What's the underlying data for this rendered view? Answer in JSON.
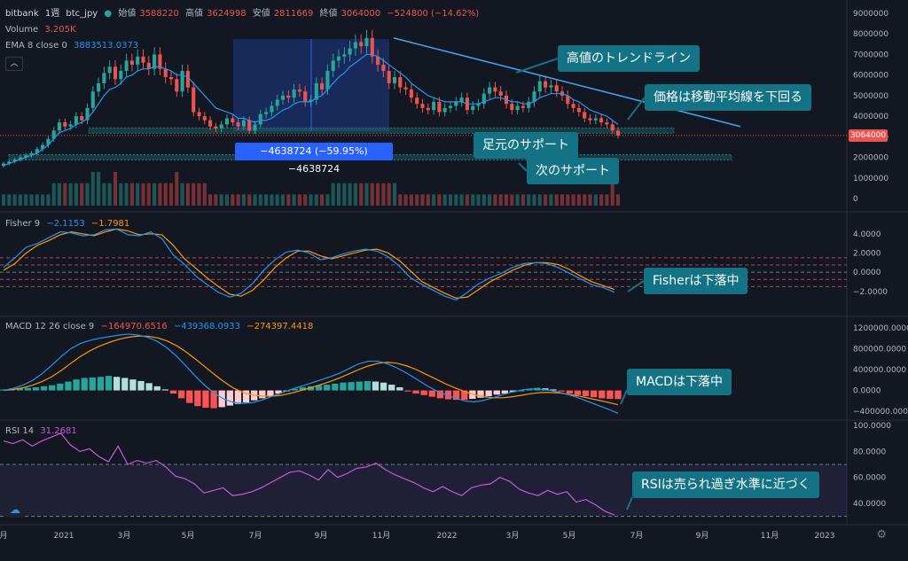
{
  "header": {
    "exchange": "bitbank",
    "interval": "1週",
    "symbol": "btc_jpy",
    "open_label": "始値",
    "open_value": "3588220",
    "high_label": "高値",
    "high_value": "3624998",
    "low_label": "安値",
    "low_value": "2811669",
    "close_label": "終値",
    "close_value": "3064000",
    "change": "−524800 (−14.62%)",
    "volume_label": "Volume",
    "volume_value": "3.205K",
    "ema_label": "EMA 8 close 0",
    "ema_value": "3883513.0373",
    "collapse_icon": "chevron-up-icon"
  },
  "fisher_header": {
    "label": "Fisher 9",
    "v1": "−2.1153",
    "v2": "−1.7981"
  },
  "macd_header": {
    "label": "MACD 12 26 close 9",
    "v1": "−164970.6516",
    "v2": "−439368.0933",
    "v3": "−274397.4418"
  },
  "rsi_header": {
    "label": "RSI 14",
    "v1": "31.2681"
  },
  "price_badge": "3064000",
  "measure_label": "−4638724 (−59.95%) −4638724",
  "callouts": {
    "high_trendline": "高値のトレンドライン",
    "below_ma": "価格は移動平均線を下回る",
    "current_support": "足元のサポート",
    "next_support": "次のサポート",
    "fisher_down": "Fisherは下落中",
    "macd_down": "MACDは下落中",
    "rsi_near": "RSIは売られ過ぎ水準に近づく"
  },
  "colors": {
    "up": "#26a69a",
    "down": "#ef5350",
    "ema": "#2196f3",
    "signal": "#ff9800",
    "rsi": "#c05cd6",
    "callout": "#137385",
    "background": "#131722"
  },
  "chart_data": [
    {
      "type": "candlestick",
      "title": "bitbank 1週 btc_jpy",
      "yticks": [
        "9000000",
        "8000000",
        "7000000",
        "6000000",
        "5000000",
        "4000000",
        "3000000",
        "2000000",
        "1000000",
        "0"
      ],
      "ylim": [
        0,
        9000000
      ],
      "xticks": [
        "月",
        "2021",
        "3月",
        "5月",
        "7月",
        "9月",
        "11月",
        "2022",
        "3月",
        "5月",
        "7月",
        "9月",
        "11月",
        "2023"
      ],
      "close": [
        1700000,
        1800000,
        1900000,
        2000000,
        2100000,
        2200000,
        2400000,
        2600000,
        2900000,
        3300000,
        3700000,
        3500000,
        3600000,
        4000000,
        3800000,
        4400000,
        5200000,
        5600000,
        6100000,
        6400000,
        5800000,
        6200000,
        6700000,
        6500000,
        6900000,
        6600000,
        6300000,
        7000000,
        6300000,
        5900000,
        5800000,
        5200000,
        6200000,
        5400000,
        4200000,
        4000000,
        3800000,
        3500000,
        3400000,
        3600000,
        3900000,
        3700000,
        3500000,
        3800000,
        3300000,
        3600000,
        4100000,
        4200000,
        4500000,
        4800000,
        5000000,
        4900000,
        5300000,
        5200000,
        4700000,
        4800000,
        5600000,
        5300000,
        6200000,
        6700000,
        6900000,
        7000000,
        7300000,
        7600000,
        7400000,
        7800000,
        6900000,
        6500000,
        6200000,
        5600000,
        5900000,
        5400000,
        5300000,
        4900000,
        4600000,
        4400000,
        4300000,
        4700000,
        4200000,
        4400000,
        4500000,
        4700000,
        4900000,
        4300000,
        4500000,
        4600000,
        5100000,
        5400000,
        5200000,
        5000000,
        4600000,
        4300000,
        4500000,
        4400000,
        4700000,
        5200000,
        5700000,
        5400000,
        5500000,
        5200000,
        5000000,
        4600000,
        4400000,
        4200000,
        3900000,
        3800000,
        3900000,
        3700000,
        3600000,
        3300000,
        3064000
      ],
      "ema": [
        1600000,
        1700000,
        1800000,
        1900000,
        2000000,
        2100000,
        2200000,
        2400000,
        2600000,
        2900000,
        3200000,
        3300000,
        3400000,
        3600000,
        3700000,
        3900000,
        4200000,
        4600000,
        5000000,
        5300000,
        5400000,
        5600000,
        5900000,
        6000000,
        6200000,
        6300000,
        6300000,
        6400000,
        6400000,
        6300000,
        6200000,
        6000000,
        6000000,
        5900000,
        5600000,
        5300000,
        5000000,
        4700000,
        4400000,
        4300000,
        4200000,
        4100000,
        3900000,
        3900000,
        3800000,
        3700000,
        3800000,
        3800000,
        3900000,
        4100000,
        4300000,
        4400000,
        4600000,
        4700000,
        4700000,
        4700000,
        4900000,
        5000000,
        5300000,
        5600000,
        5900000,
        6100000,
        6400000,
        6600000,
        6800000,
        7000000,
        7000000,
        6900000,
        6700000,
        6500000,
        6300000,
        6100000,
        5900000,
        5600000,
        5400000,
        5200000,
        5000000,
        4900000,
        4800000,
        4700000,
        4700000,
        4700000,
        4700000,
        4600000,
        4600000,
        4600000,
        4700000,
        4800000,
        4900000,
        4900000,
        4800000,
        4700000,
        4700000,
        4600000,
        4600000,
        4700000,
        4900000,
        5000000,
        5100000,
        5100000,
        5100000,
        5000000,
        4800000,
        4700000,
        4500000,
        4300000,
        4200000,
        4100000,
        4000000,
        3800000,
        3600000
      ],
      "volume": [
        1,
        1,
        1,
        1,
        1,
        1,
        1,
        1,
        1,
        2,
        2,
        2,
        2,
        2,
        2,
        2,
        3,
        3,
        2,
        2,
        3,
        2,
        2,
        2,
        2,
        2,
        2,
        2,
        2,
        2,
        2,
        3,
        2,
        2,
        2,
        2,
        2,
        1,
        1,
        1,
        1,
        1,
        1,
        1,
        1,
        1,
        1,
        1,
        1,
        1,
        1,
        1,
        1,
        1,
        1,
        1,
        1,
        1,
        1,
        2,
        2,
        2,
        2,
        2,
        2,
        2,
        2,
        2,
        2,
        2,
        2,
        1,
        1,
        1,
        1,
        1,
        1,
        1,
        1,
        1,
        1,
        1,
        1,
        1,
        1,
        1,
        1,
        1,
        1,
        1,
        1,
        1,
        1,
        1,
        1,
        1,
        1,
        1,
        1,
        1,
        1,
        1,
        1,
        1,
        1,
        1,
        1,
        1,
        1,
        2,
        1
      ],
      "hlines": {
        "current_support": 3300000,
        "next_support": 2000000
      },
      "trendline": {
        "from": 7800000,
        "to": 3500000
      }
    },
    {
      "type": "line",
      "title": "Fisher 9",
      "yticks": [
        "4.0000",
        "2.0000",
        "0.0000",
        "−2.0000"
      ],
      "ylim": [
        -3.5,
        5
      ],
      "levels": [
        1.5,
        0.75,
        0,
        -0.75,
        -1.5
      ],
      "series": [
        {
          "name": "Fisher",
          "values": [
            0.5,
            1.5,
            2.6,
            3.0,
            3.6,
            4.2,
            4.1,
            3.8,
            3.9,
            4.4,
            4.5,
            3.9,
            3.8,
            4.2,
            3.5,
            1.8,
            0.8,
            -0.4,
            -1.3,
            -2.1,
            -2.6,
            -2.2,
            -1.2,
            0.2,
            1.3,
            2.1,
            2.3,
            2.0,
            1.3,
            1.5,
            1.9,
            2.2,
            2.4,
            2.2,
            1.6,
            0.6,
            -0.6,
            -1.3,
            -1.9,
            -2.5,
            -2.9,
            -2.1,
            -1.2,
            -0.6,
            -0.1,
            0.5,
            0.9,
            1.0,
            0.9,
            0.5,
            -0.1,
            -0.7,
            -1.3,
            -1.6,
            -2.1
          ]
        },
        {
          "name": "Signal",
          "values": [
            0.2,
            0.9,
            2.0,
            2.8,
            3.3,
            3.9,
            4.2,
            4.0,
            3.8,
            4.2,
            4.5,
            4.3,
            3.9,
            4.0,
            3.9,
            2.8,
            1.4,
            0.4,
            -0.6,
            -1.5,
            -2.3,
            -2.5,
            -1.9,
            -0.8,
            0.5,
            1.5,
            2.2,
            2.2,
            1.7,
            1.4,
            1.7,
            2.0,
            2.3,
            2.4,
            2.0,
            1.2,
            0.1,
            -1.0,
            -1.6,
            -2.2,
            -2.7,
            -2.6,
            -1.8,
            -1.0,
            -0.4,
            0.2,
            0.7,
            1.0,
            1.0,
            0.8,
            0.3,
            -0.4,
            -1.0,
            -1.4,
            -1.8
          ]
        }
      ]
    },
    {
      "type": "bar",
      "title": "MACD 12 26 close 9",
      "yticks": [
        "1200000.0000",
        "800000.0000",
        "400000.0000",
        "0.0000",
        "−400000.0000"
      ],
      "ylim": [
        -500000,
        1300000
      ],
      "histogram": [
        20000,
        30000,
        40000,
        50000,
        60000,
        80000,
        100000,
        130000,
        170000,
        210000,
        240000,
        250000,
        260000,
        280000,
        260000,
        240000,
        210000,
        180000,
        140000,
        80000,
        20000,
        -60000,
        -150000,
        -240000,
        -300000,
        -330000,
        -340000,
        -320000,
        -290000,
        -260000,
        -230000,
        -190000,
        -150000,
        -110000,
        -60000,
        -10000,
        30000,
        60000,
        80000,
        100000,
        110000,
        130000,
        150000,
        160000,
        170000,
        180000,
        170000,
        150000,
        110000,
        60000,
        -20000,
        -60000,
        -90000,
        -120000,
        -150000,
        -170000,
        -180000,
        -180000,
        -160000,
        -140000,
        -110000,
        -80000,
        -60000,
        -30000,
        0,
        30000,
        50000,
        40000,
        20000,
        -20000,
        -60000,
        -90000,
        -110000,
        -130000,
        -150000,
        -160000,
        -165000
      ],
      "series": [
        {
          "name": "MACD",
          "values": [
            0,
            40000,
            100000,
            190000,
            320000,
            480000,
            650000,
            800000,
            900000,
            960000,
            1000000,
            1030000,
            1060000,
            1080000,
            1060000,
            1020000,
            940000,
            820000,
            660000,
            470000,
            270000,
            90000,
            -60000,
            -170000,
            -230000,
            -250000,
            -230000,
            -180000,
            -110000,
            -40000,
            20000,
            80000,
            140000,
            200000,
            260000,
            330000,
            420000,
            510000,
            560000,
            560000,
            510000,
            430000,
            330000,
            220000,
            100000,
            0,
            -80000,
            -140000,
            -200000,
            -220000,
            -190000,
            -140000,
            -80000,
            -30000,
            10000,
            30000,
            20000,
            0,
            -40000,
            -90000,
            -150000,
            -220000,
            -290000,
            -360000,
            -439368
          ]
        },
        {
          "name": "Signal",
          "values": [
            0,
            20000,
            50000,
            100000,
            170000,
            260000,
            380000,
            520000,
            650000,
            760000,
            850000,
            920000,
            980000,
            1020000,
            1040000,
            1040000,
            1010000,
            950000,
            860000,
            740000,
            600000,
            450000,
            300000,
            160000,
            40000,
            -40000,
            -90000,
            -110000,
            -110000,
            -90000,
            -50000,
            0,
            50000,
            110000,
            170000,
            240000,
            320000,
            400000,
            470000,
            520000,
            540000,
            520000,
            470000,
            400000,
            310000,
            220000,
            130000,
            50000,
            -20000,
            -80000,
            -120000,
            -140000,
            -140000,
            -120000,
            -90000,
            -60000,
            -40000,
            -40000,
            -50000,
            -80000,
            -110000,
            -150000,
            -190000,
            -230000,
            -274397
          ]
        }
      ]
    },
    {
      "type": "line",
      "title": "RSI 14",
      "yticks": [
        "100.0000",
        "80.0000",
        "60.0000",
        "40.0000"
      ],
      "ylim": [
        25,
        100
      ],
      "levels": [
        70,
        30
      ],
      "series": [
        {
          "name": "RSI",
          "values": [
            88,
            86,
            89,
            84,
            88,
            91,
            94,
            85,
            80,
            82,
            76,
            72,
            84,
            70,
            73,
            71,
            73,
            68,
            61,
            59,
            55,
            48,
            50,
            52,
            46,
            47,
            49,
            52,
            56,
            60,
            64,
            65,
            62,
            58,
            66,
            60,
            63,
            67,
            68,
            71,
            66,
            62,
            59,
            56,
            52,
            49,
            53,
            49,
            46,
            52,
            54,
            55,
            60,
            57,
            51,
            48,
            46,
            50,
            47,
            49,
            41,
            43,
            39,
            34,
            31
          ]
        }
      ]
    }
  ]
}
